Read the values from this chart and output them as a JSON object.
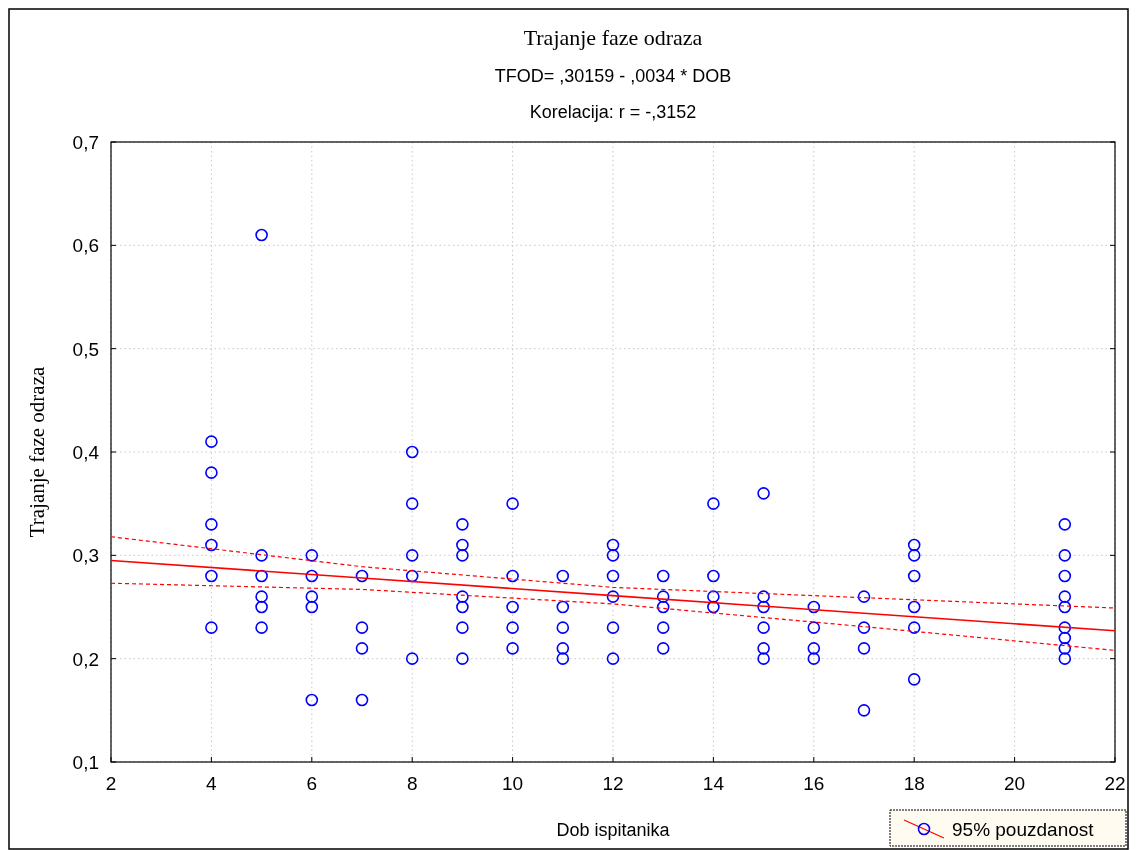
{
  "chart_data": {
    "type": "scatter",
    "title": "Trajanje faze odraza",
    "subtitle": "TFOD= ,30159 - ,0034  * DOB",
    "annotations": [
      "Korelacija: r = -,3152"
    ],
    "xlabel": "Dob ispitanika",
    "ylabel": "Trajanje faze odraza",
    "xlim": [
      2,
      22
    ],
    "ylim": [
      0.1,
      0.7
    ],
    "xticks": [
      2,
      4,
      6,
      8,
      10,
      12,
      14,
      16,
      18,
      20,
      22
    ],
    "yticks": [
      {
        "value": 0.1,
        "label": "0,1"
      },
      {
        "value": 0.2,
        "label": "0,2"
      },
      {
        "value": 0.3,
        "label": "0,3"
      },
      {
        "value": 0.4,
        "label": "0,4"
      },
      {
        "value": 0.5,
        "label": "0,5"
      },
      {
        "value": 0.6,
        "label": "0,6"
      },
      {
        "value": 0.7,
        "label": "0,7"
      }
    ],
    "grid": true,
    "legend": "bottom right",
    "marker": "circle",
    "series": [
      {
        "name": "95% pouzdanost",
        "color": "#0000ff",
        "x": [
          4,
          4,
          4,
          4,
          4,
          4,
          5,
          5,
          5,
          5,
          5,
          5,
          6,
          6,
          6,
          6,
          6,
          7,
          7,
          7,
          7,
          8,
          8,
          8,
          8,
          8,
          9,
          9,
          9,
          9,
          9,
          9,
          9,
          10,
          10,
          10,
          10,
          10,
          11,
          11,
          11,
          11,
          11,
          12,
          12,
          12,
          12,
          12,
          12,
          13,
          13,
          13,
          13,
          13,
          14,
          14,
          14,
          14,
          15,
          15,
          15,
          15,
          15,
          15,
          16,
          16,
          16,
          16,
          17,
          17,
          17,
          17,
          18,
          18,
          18,
          18,
          18,
          18,
          21,
          21,
          21,
          21,
          21,
          21,
          21,
          21,
          21
        ],
        "values": [
          0.41,
          0.38,
          0.33,
          0.31,
          0.28,
          0.23,
          0.61,
          0.3,
          0.28,
          0.26,
          0.25,
          0.23,
          0.3,
          0.28,
          0.26,
          0.25,
          0.16,
          0.28,
          0.23,
          0.21,
          0.16,
          0.4,
          0.35,
          0.3,
          0.28,
          0.2,
          0.33,
          0.31,
          0.3,
          0.26,
          0.25,
          0.23,
          0.2,
          0.35,
          0.28,
          0.25,
          0.23,
          0.21,
          0.28,
          0.25,
          0.23,
          0.21,
          0.2,
          0.31,
          0.3,
          0.28,
          0.26,
          0.23,
          0.2,
          0.28,
          0.26,
          0.25,
          0.23,
          0.21,
          0.35,
          0.28,
          0.26,
          0.25,
          0.36,
          0.26,
          0.25,
          0.23,
          0.21,
          0.2,
          0.25,
          0.23,
          0.21,
          0.2,
          0.26,
          0.23,
          0.21,
          0.15,
          0.31,
          0.3,
          0.28,
          0.25,
          0.23,
          0.18,
          0.33,
          0.3,
          0.28,
          0.26,
          0.25,
          0.23,
          0.22,
          0.21,
          0.2
        ]
      },
      {
        "type": "line",
        "color": "#ff0000",
        "line_style": "solid",
        "marker": "none",
        "x": [
          2,
          7,
          12,
          17,
          22
        ],
        "values": [
          0.295,
          0.278,
          0.261,
          0.244,
          0.227
        ]
      },
      {
        "type": "line",
        "color": "#ff0000",
        "line_style": "dashed",
        "x": [
          2,
          7,
          12,
          17,
          22
        ],
        "values": [
          0.318,
          0.289,
          0.269,
          0.259,
          0.249
        ],
        "marker": "none"
      },
      {
        "type": "line",
        "color": "#ff0000",
        "line_style": "dashed",
        "x": [
          2,
          7,
          12,
          17,
          22
        ],
        "values": [
          0.273,
          0.267,
          0.253,
          0.231,
          0.208
        ],
        "marker": "none"
      }
    ]
  }
}
